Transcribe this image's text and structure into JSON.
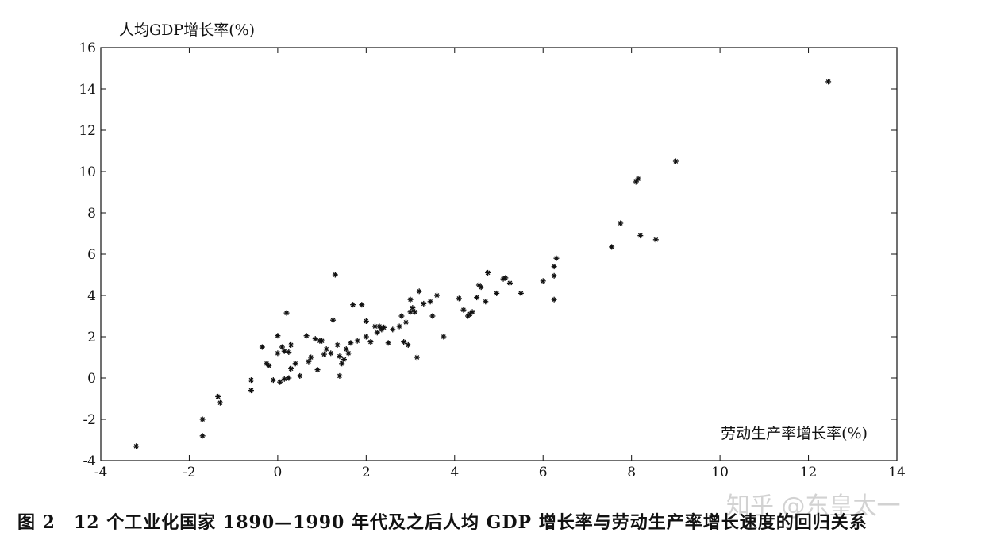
{
  "chart_data": {
    "type": "scatter",
    "title": "",
    "ylabel": "人均GDP增长率(%)",
    "xlabel": "劳动生产率增长率(%)",
    "xlim": [
      -4,
      14
    ],
    "ylim": [
      -4,
      16
    ],
    "x_ticks": [
      "-4",
      "-2",
      "0",
      "2",
      "4",
      "6",
      "8",
      "10",
      "12",
      "14"
    ],
    "y_ticks": [
      "-4",
      "-2",
      "0",
      "2",
      "4",
      "6",
      "8",
      "10",
      "12",
      "14",
      "16"
    ],
    "grid": false,
    "marker": "plus-star",
    "points": [
      [
        -3.2,
        -3.3
      ],
      [
        -1.7,
        -2.0
      ],
      [
        -1.7,
        -2.8
      ],
      [
        -1.35,
        -0.9
      ],
      [
        -1.3,
        -1.2
      ],
      [
        -0.6,
        -0.1
      ],
      [
        -0.6,
        -0.6
      ],
      [
        -0.35,
        1.5
      ],
      [
        -0.25,
        0.7
      ],
      [
        -0.2,
        0.6
      ],
      [
        -0.1,
        -0.1
      ],
      [
        0.0,
        2.05
      ],
      [
        0.0,
        1.2
      ],
      [
        0.05,
        -0.2
      ],
      [
        0.1,
        1.5
      ],
      [
        0.15,
        1.3
      ],
      [
        0.15,
        -0.05
      ],
      [
        0.2,
        3.15
      ],
      [
        0.25,
        0.0
      ],
      [
        0.25,
        1.25
      ],
      [
        0.3,
        1.6
      ],
      [
        0.3,
        0.45
      ],
      [
        0.4,
        0.7
      ],
      [
        0.5,
        0.1
      ],
      [
        0.65,
        2.05
      ],
      [
        0.7,
        0.8
      ],
      [
        0.75,
        1.0
      ],
      [
        0.85,
        1.9
      ],
      [
        0.9,
        0.4
      ],
      [
        0.95,
        1.8
      ],
      [
        1.0,
        1.8
      ],
      [
        1.05,
        1.15
      ],
      [
        1.1,
        1.4
      ],
      [
        1.2,
        1.2
      ],
      [
        1.25,
        2.8
      ],
      [
        1.3,
        5.0
      ],
      [
        1.35,
        1.6
      ],
      [
        1.4,
        1.05
      ],
      [
        1.4,
        0.1
      ],
      [
        1.45,
        0.7
      ],
      [
        1.5,
        0.9
      ],
      [
        1.55,
        1.4
      ],
      [
        1.6,
        1.2
      ],
      [
        1.65,
        1.7
      ],
      [
        1.7,
        3.55
      ],
      [
        1.8,
        1.8
      ],
      [
        1.9,
        3.55
      ],
      [
        2.0,
        2.0
      ],
      [
        2.0,
        2.75
      ],
      [
        2.1,
        1.75
      ],
      [
        2.2,
        2.5
      ],
      [
        2.25,
        2.2
      ],
      [
        2.3,
        2.5
      ],
      [
        2.35,
        2.35
      ],
      [
        2.4,
        2.45
      ],
      [
        2.5,
        1.7
      ],
      [
        2.6,
        2.35
      ],
      [
        2.75,
        2.5
      ],
      [
        2.8,
        3.0
      ],
      [
        2.85,
        1.75
      ],
      [
        2.9,
        2.7
      ],
      [
        2.95,
        1.6
      ],
      [
        3.0,
        3.2
      ],
      [
        3.0,
        3.8
      ],
      [
        3.05,
        3.4
      ],
      [
        3.1,
        3.2
      ],
      [
        3.15,
        1.0
      ],
      [
        3.2,
        4.2
      ],
      [
        3.3,
        3.6
      ],
      [
        3.45,
        3.7
      ],
      [
        3.5,
        3.0
      ],
      [
        3.6,
        4.0
      ],
      [
        3.75,
        2.0
      ],
      [
        4.1,
        3.85
      ],
      [
        4.2,
        3.3
      ],
      [
        4.3,
        3.0
      ],
      [
        4.35,
        3.1
      ],
      [
        4.4,
        3.2
      ],
      [
        4.5,
        3.9
      ],
      [
        4.55,
        4.5
      ],
      [
        4.6,
        4.4
      ],
      [
        4.7,
        3.7
      ],
      [
        4.75,
        5.1
      ],
      [
        4.95,
        4.1
      ],
      [
        5.1,
        4.8
      ],
      [
        5.15,
        4.85
      ],
      [
        5.25,
        4.6
      ],
      [
        5.5,
        4.1
      ],
      [
        6.0,
        4.7
      ],
      [
        6.25,
        3.8
      ],
      [
        6.25,
        5.4
      ],
      [
        6.25,
        4.95
      ],
      [
        6.3,
        5.8
      ],
      [
        7.55,
        6.35
      ],
      [
        7.75,
        7.5
      ],
      [
        8.1,
        9.5
      ],
      [
        8.15,
        9.65
      ],
      [
        8.2,
        6.9
      ],
      [
        8.55,
        6.7
      ],
      [
        9.0,
        10.5
      ],
      [
        12.45,
        14.35
      ]
    ]
  },
  "caption": "图 2　12 个工业化国家 1890—1990 年代及之后人均 GDP 增长率与劳动生产率增长速度的回归关系",
  "watermark": "知乎 @东皇太一",
  "colors": {
    "marker": "#111111",
    "axis": "#111111",
    "background": "#ffffff"
  }
}
